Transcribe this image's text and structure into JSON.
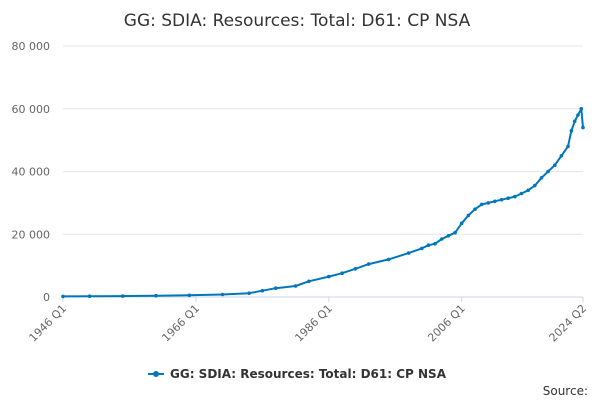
{
  "chart_data": {
    "type": "line",
    "title": "GG: SDIA: Resources: Total: D61: CP NSA",
    "xlabel": "",
    "ylabel": "",
    "x_tick_labels": [
      "1946 Q1",
      "1966 Q1",
      "1986 Q1",
      "2006 Q1",
      "2024 Q2"
    ],
    "y_tick_labels": [
      "0",
      "20 000",
      "40 000",
      "60 000",
      "80 000"
    ],
    "ylim": [
      0,
      80000
    ],
    "grid": true,
    "legend_position": "bottom-center",
    "series": [
      {
        "name": "GG: SDIA: Resources: Total: D61: CP NSA",
        "color": "#0077bb",
        "points": [
          [
            "1946 Q1",
            200
          ],
          [
            "1950 Q1",
            250
          ],
          [
            "1955 Q1",
            300
          ],
          [
            "1960 Q1",
            400
          ],
          [
            "1965 Q1",
            550
          ],
          [
            "1970 Q1",
            800
          ],
          [
            "1974 Q1",
            1200
          ],
          [
            "1976 Q1",
            2000
          ],
          [
            "1978 Q1",
            2800
          ],
          [
            "1981 Q1",
            3500
          ],
          [
            "1983 Q1",
            5000
          ],
          [
            "1986 Q1",
            6500
          ],
          [
            "1988 Q1",
            7600
          ],
          [
            "1990 Q1",
            9000
          ],
          [
            "1992 Q1",
            10500
          ],
          [
            "1995 Q1",
            12000
          ],
          [
            "1998 Q1",
            14000
          ],
          [
            "2000 Q1",
            15500
          ],
          [
            "2001 Q1",
            16500
          ],
          [
            "2002 Q1",
            17000
          ],
          [
            "2003 Q1",
            18500
          ],
          [
            "2004 Q1",
            19500
          ],
          [
            "2005 Q1",
            20500
          ],
          [
            "2006 Q1",
            23500
          ],
          [
            "2007 Q1",
            26000
          ],
          [
            "2008 Q1",
            28000
          ],
          [
            "2009 Q1",
            29500
          ],
          [
            "2010 Q1",
            30000
          ],
          [
            "2011 Q1",
            30500
          ],
          [
            "2012 Q1",
            31000
          ],
          [
            "2013 Q1",
            31500
          ],
          [
            "2014 Q1",
            32000
          ],
          [
            "2015 Q1",
            33000
          ],
          [
            "2016 Q1",
            34000
          ],
          [
            "2017 Q1",
            35500
          ],
          [
            "2018 Q1",
            38000
          ],
          [
            "2019 Q1",
            40000
          ],
          [
            "2020 Q1",
            42000
          ],
          [
            "2021 Q1",
            45000
          ],
          [
            "2022 Q1",
            48000
          ],
          [
            "2022 Q3",
            53000
          ],
          [
            "2023 Q1",
            56000
          ],
          [
            "2023 Q3",
            58000
          ],
          [
            "2024 Q1",
            60000
          ],
          [
            "2024 Q2",
            54000
          ]
        ]
      }
    ]
  },
  "source_label": "Source:"
}
